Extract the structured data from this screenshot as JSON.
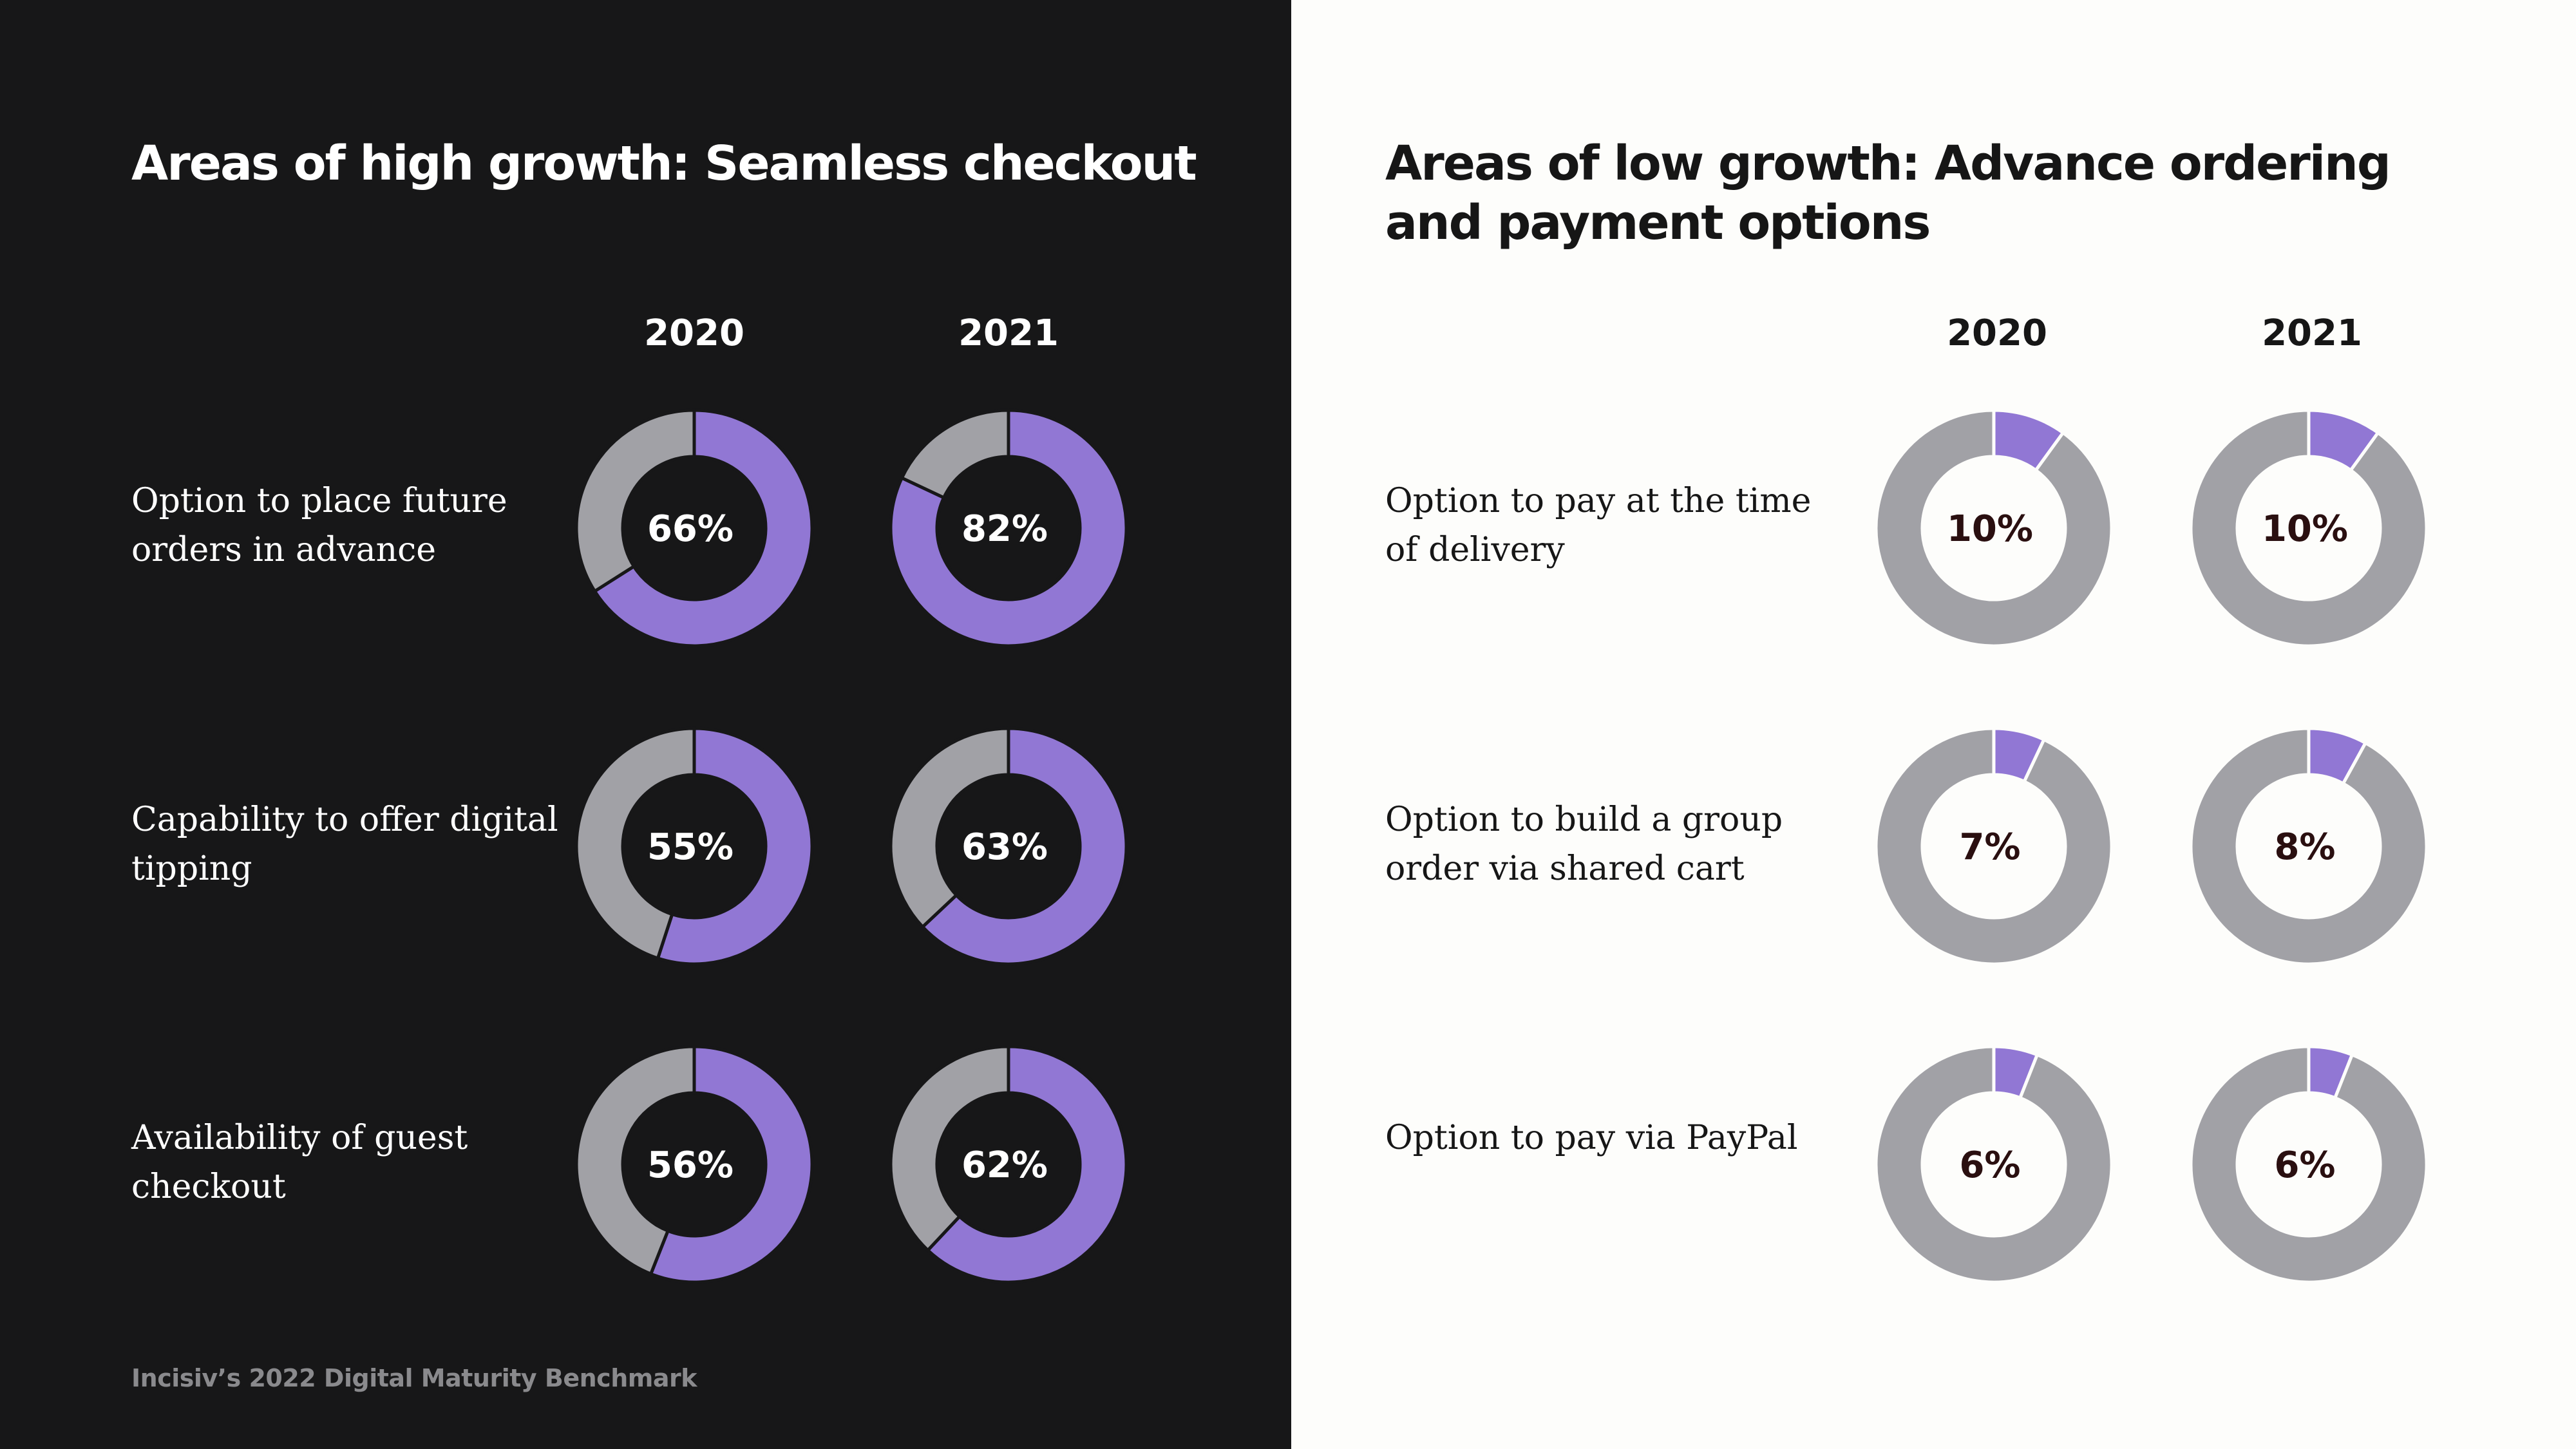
{
  "colors": {
    "highlight": "#9177d4",
    "remainder": "#a1a1a6",
    "left_bg": "#171718",
    "right_bg": "#fdfdfb"
  },
  "left": {
    "title": "Areas of high growth: Seamless checkout",
    "years": [
      "2020",
      "2021"
    ],
    "rows": [
      {
        "label": "Option to place future orders in advance"
      },
      {
        "label": "Capability to offer digital tipping"
      },
      {
        "label": "Availability of guest checkout"
      }
    ]
  },
  "right": {
    "title": "Areas of low growth: Advance ordering and payment options",
    "years": [
      "2020",
      "2021"
    ],
    "rows": [
      {
        "label": "Option to pay at the time of delivery"
      },
      {
        "label": "Option to build a group order via shared cart"
      },
      {
        "label": "Option to pay via PayPal"
      }
    ]
  },
  "footer": {
    "source": "Incisiv’s 2022 Digital Maturity Benchmark"
  },
  "chart_data": [
    {
      "type": "pie",
      "title": "Areas of high growth: Seamless checkout",
      "categories": [
        "Option to place future orders in advance",
        "Capability to offer digital tipping",
        "Availability of guest checkout"
      ],
      "series": [
        {
          "name": "2020",
          "values": [
            66,
            55,
            56
          ],
          "labels": [
            "66%",
            "55%",
            "56%"
          ]
        },
        {
          "name": "2021",
          "values": [
            82,
            63,
            62
          ],
          "labels": [
            "82%",
            "63%",
            "62%"
          ]
        }
      ]
    },
    {
      "type": "pie",
      "title": "Areas of low growth: Advance ordering and payment options",
      "categories": [
        "Option to pay at the time of delivery",
        "Option to build a group order via shared cart",
        "Option to pay via PayPal"
      ],
      "series": [
        {
          "name": "2020",
          "values": [
            10,
            7,
            6
          ],
          "labels": [
            "10%",
            "7%",
            "6%"
          ]
        },
        {
          "name": "2021",
          "values": [
            10,
            8,
            6
          ],
          "labels": [
            "10%",
            "8%",
            "6%"
          ]
        }
      ]
    }
  ]
}
